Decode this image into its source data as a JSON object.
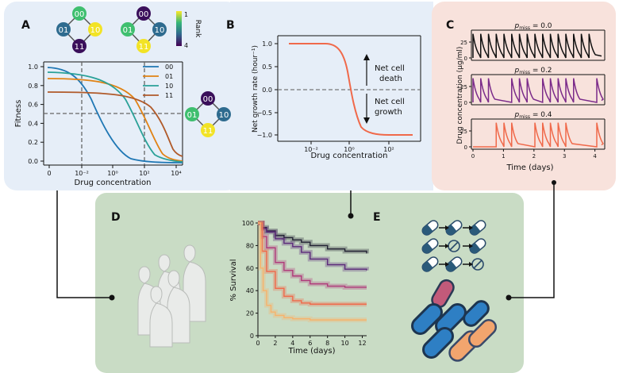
{
  "panels": {
    "A": "A",
    "B": "B",
    "C": "C",
    "D": "D",
    "E": "E"
  },
  "colors": {
    "panelA_bg": "#e6eef8",
    "panelB_bg": "#e6eef8",
    "panelC_bg": "#f8e2dc",
    "panelDE_bg": "#c9dcc5",
    "g00": "#3d2a7a",
    "g01": "#2e8b9a",
    "g10": "#3c6e8f",
    "g11": "#f2e326",
    "c00": "#1f77b4",
    "c01": "#e08214",
    "c10": "#2aa198",
    "c11": "#c0582a",
    "netgrowth": "#f0694a",
    "black": "#111111",
    "purple": "#7b2b8a",
    "salmon": "#f0694a"
  },
  "panelA": {
    "ylabel": "Fitness",
    "xlabel": "Drug concentration",
    "yticks": [
      "0.0",
      "0.2",
      "0.4",
      "0.6",
      "0.8",
      "1.0"
    ],
    "xticks": [
      "0",
      "10⁻²",
      "10⁰",
      "10²",
      "10⁴"
    ],
    "legend": [
      {
        "name": "00",
        "color": "#1f77b4"
      },
      {
        "name": "01",
        "color": "#e08214"
      },
      {
        "name": "10",
        "color": "#2aa198"
      },
      {
        "name": "11",
        "color": "#b05a2a"
      }
    ],
    "rank_label": "Rank",
    "rank_top": "1",
    "rank_bottom": "4",
    "genotypes": [
      "00",
      "01",
      "10",
      "11"
    ]
  },
  "panelB": {
    "ylabel": "Net growth rate (hour⁻¹)",
    "xlabel": "Drug concentration",
    "yticks": [
      "1.0",
      "0.5",
      "0.0",
      "−0.5",
      "−1.0"
    ],
    "xticks": [
      "10⁻²",
      "10⁰",
      "10²"
    ],
    "death_label_1": "Net cell",
    "death_label_2": "death",
    "growth_label_1": "Net cell",
    "growth_label_2": "growth"
  },
  "panelC": {
    "ylabel": "Drug concentration (μg/ml)",
    "xlabel": "Time (days)",
    "rows": [
      {
        "label": "p",
        "sub": "miss",
        "value": " = 0.0"
      },
      {
        "label": "p",
        "sub": "miss",
        "value": " = 0.2"
      },
      {
        "label": "p",
        "sub": "miss",
        "value": " = 0.4"
      }
    ],
    "yticks": [
      "0",
      "25"
    ],
    "xticks": [
      "0",
      "1",
      "2",
      "3",
      "4"
    ]
  },
  "panelD": {
    "ylabel": "% Survival",
    "xlabel": "Time (days)",
    "yticks": [
      "0",
      "20",
      "40",
      "60",
      "80",
      "100"
    ],
    "xticks": [
      "0",
      "2",
      "4",
      "6",
      "8",
      "10",
      "12"
    ],
    "chart_data": {
      "type": "line",
      "x_label": "Time (days)",
      "y_label": "% Survival",
      "ylim": [
        0,
        100
      ],
      "xlim": [
        0,
        12.5
      ],
      "series": [
        {
          "color": "#222233",
          "x": [
            0,
            0.5,
            1,
            2,
            3,
            4,
            5,
            6,
            8,
            10,
            12.5
          ],
          "y": [
            100,
            96,
            93,
            89,
            87,
            85,
            83,
            80,
            77,
            75,
            73
          ]
        },
        {
          "color": "#5b2a7a",
          "x": [
            0,
            0.5,
            1,
            2,
            3,
            4,
            5,
            6,
            8,
            10,
            12.5
          ],
          "y": [
            100,
            95,
            92,
            86,
            82,
            79,
            74,
            68,
            63,
            59,
            58
          ]
        },
        {
          "color": "#b03a7a",
          "x": [
            0,
            0.5,
            1,
            2,
            3,
            4,
            5,
            6,
            8,
            10,
            12.5
          ],
          "y": [
            100,
            88,
            78,
            65,
            58,
            53,
            49,
            46,
            44,
            43,
            43
          ]
        },
        {
          "color": "#f0694a",
          "x": [
            0,
            0.5,
            1,
            2,
            3,
            4,
            5,
            6,
            8,
            10,
            12.5
          ],
          "y": [
            100,
            75,
            57,
            42,
            35,
            31,
            29,
            28,
            28,
            28,
            28
          ]
        },
        {
          "color": "#f7b36b",
          "x": [
            0,
            0.3,
            0.6,
            1,
            1.5,
            2,
            3,
            4,
            6,
            8,
            12.5
          ],
          "y": [
            100,
            60,
            40,
            27,
            21,
            18,
            16,
            15,
            14,
            14,
            14
          ]
        }
      ]
    }
  }
}
